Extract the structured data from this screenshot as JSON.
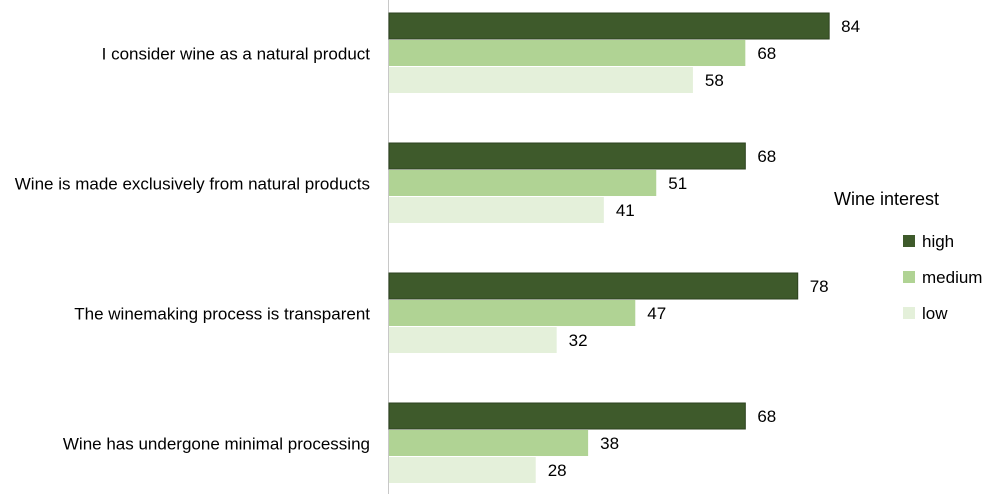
{
  "chart_data": {
    "type": "bar",
    "orientation": "horizontal",
    "categories": [
      "I consider wine as a natural product",
      "Wine is made exclusively from natural products",
      "The winemaking process is transparent",
      "Wine has undergone minimal processing"
    ],
    "series": [
      {
        "name": "high",
        "values": [
          84,
          68,
          78,
          68
        ],
        "color": "#3e5a2b"
      },
      {
        "name": "medium",
        "values": [
          68,
          51,
          47,
          38
        ],
        "color": "#b0d394"
      },
      {
        "name": "low",
        "values": [
          58,
          41,
          32,
          28
        ],
        "color": "#e4f0da"
      }
    ],
    "legend": {
      "title": "Wine interest",
      "position": "right"
    },
    "xlim": [
      0,
      100
    ],
    "grid": false,
    "data_labels": true
  }
}
